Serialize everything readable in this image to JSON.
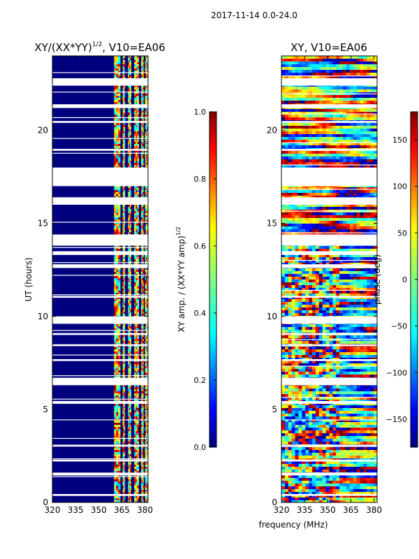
{
  "figure": {
    "suptitle": "2017-11-14 0.0-24.0",
    "xlabel": "frequency (MHz)"
  },
  "colors": {
    "jet": [
      "#00007f",
      "#0000ff",
      "#007fff",
      "#00ffff",
      "#7fff7f",
      "#ffff00",
      "#ff7f00",
      "#ff0000",
      "#7f0000"
    ],
    "axes": "#000000",
    "gap": "#ffffff"
  },
  "chart_data": [
    {
      "type": "heatmap",
      "title": "XY/(XX*YY)",
      "title_superscript": "1/2",
      "title_suffix": ", V10=EA06",
      "xlabel": "",
      "ylabel": "UT (hours)",
      "xlim": [
        320,
        382
      ],
      "ylim": [
        0,
        24
      ],
      "x_ticks": [
        320,
        335,
        350,
        365,
        380
      ],
      "y_ticks": [
        0,
        5,
        10,
        15,
        20
      ],
      "band_channels_mhz": [
        [
          360,
          364
        ],
        [
          365.5,
          367
        ],
        [
          369,
          371
        ],
        [
          373,
          376
        ],
        [
          377.5,
          379
        ],
        [
          380,
          382
        ]
      ],
      "data_gaps_ut": [
        [
          0.35,
          0.45
        ],
        [
          1.45,
          1.6
        ],
        [
          2.2,
          2.3
        ],
        [
          3.0,
          3.1
        ],
        [
          5.3,
          5.45
        ],
        [
          6.3,
          6.7
        ],
        [
          7.6,
          7.7
        ],
        [
          8.4,
          8.5
        ],
        [
          9.0,
          9.1
        ],
        [
          9.6,
          10.0
        ],
        [
          11.0,
          11.1
        ],
        [
          12.6,
          12.8
        ],
        [
          13.3,
          13.5
        ],
        [
          13.8,
          14.4
        ],
        [
          16.0,
          16.4
        ],
        [
          17.0,
          18.0
        ],
        [
          18.9,
          19.0
        ],
        [
          20.4,
          20.5
        ],
        [
          21.2,
          21.4
        ],
        [
          22.4,
          22.8
        ]
      ],
      "colorbar": {
        "label": "XY amp. / (XX*YY amp)",
        "label_superscript": "1/2",
        "range": [
          0.0,
          1.0
        ],
        "ticks": [
          "0.0",
          "0.2",
          "0.4",
          "0.6",
          "0.8",
          "1.0"
        ]
      }
    },
    {
      "type": "heatmap",
      "title": "XY, V10=EA06",
      "xlabel": "frequency (MHz)",
      "ylabel": "",
      "xlim": [
        320,
        382
      ],
      "ylim": [
        0,
        24
      ],
      "x_ticks": [
        320,
        335,
        350,
        365,
        380
      ],
      "y_ticks": [
        0,
        5,
        10,
        15,
        20
      ],
      "colorbar": {
        "label": "phase (deg)",
        "range": [
          -180,
          180
        ],
        "ticks": [
          "-150",
          "-100",
          "-50",
          "0",
          "50",
          "100",
          "150"
        ]
      }
    }
  ]
}
